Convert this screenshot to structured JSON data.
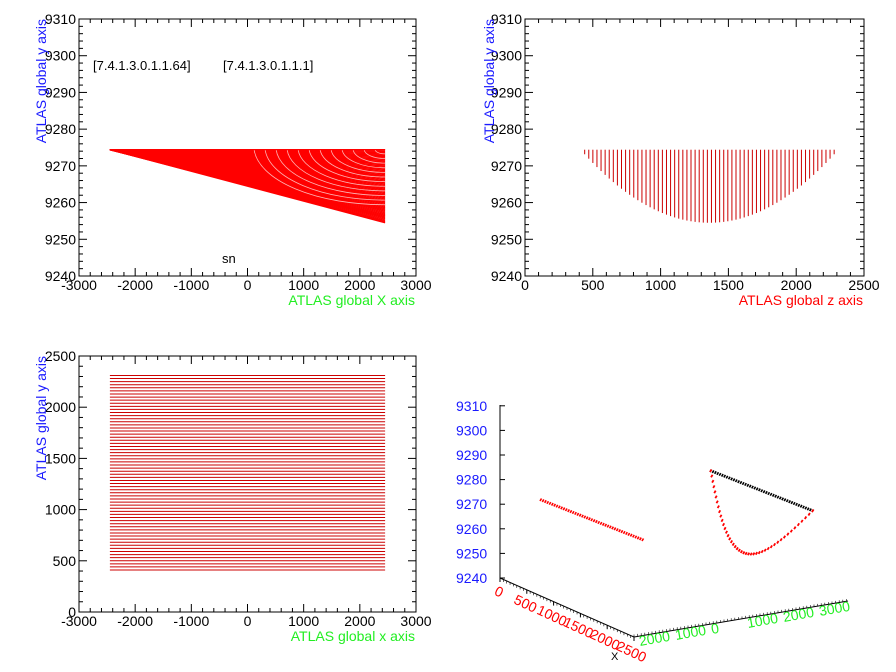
{
  "colors": {
    "blue": "#1a1aff",
    "green": "#22ee22",
    "red": "#ff0000",
    "darkred": "#cc0000",
    "black": "#000000"
  },
  "chart_data": [
    {
      "type": "line",
      "title": "",
      "xlabel": "ATLAS global X axis",
      "ylabel": "ATLAS global y axis",
      "xlabel_color": "green",
      "ylabel_color": "blue",
      "xlim": [
        -3000,
        3000
      ],
      "ylim": [
        9240,
        9310
      ],
      "xticks": [
        -3000,
        -2000,
        -1000,
        0,
        1000,
        2000,
        3000
      ],
      "yticks": [
        9240,
        9250,
        9260,
        9270,
        9280,
        9290,
        9300,
        9310
      ],
      "annotations": [
        "[7.4.1.3.0.1.1.64]",
        "[7.4.1.3.0.1.1.1]",
        "sn"
      ],
      "fan_origin": [
        -2450,
        9274.4
      ],
      "fan_x_end": 2450,
      "fan_y_end_range": [
        9254.5,
        9274.4
      ]
    },
    {
      "type": "line",
      "title": "",
      "xlabel": "ATLAS global z axis",
      "ylabel": "ATLAS global y axis",
      "xlabel_color": "red",
      "ylabel_color": "blue",
      "xlim": [
        0,
        2500
      ],
      "ylim": [
        9240,
        9310
      ],
      "xticks": [
        0,
        500,
        1000,
        1500,
        2000,
        2500
      ],
      "yticks": [
        9240,
        9250,
        9260,
        9270,
        9280,
        9290,
        9300,
        9310
      ],
      "z_range": [
        410,
        2310
      ],
      "y_top": 9274.4,
      "y_min": 9254.5,
      "z_at_min": 1360,
      "n_lines": 64
    },
    {
      "type": "line",
      "title": "",
      "xlabel": "ATLAS global x axis",
      "ylabel": "ATLAS global y axis",
      "xlabel_color": "green",
      "ylabel_color": "blue",
      "xlim": [
        -3000,
        3000
      ],
      "ylim": [
        0,
        2500
      ],
      "xticks": [
        -3000,
        -2000,
        -1000,
        0,
        1000,
        2000,
        3000
      ],
      "yticks": [
        0,
        500,
        1000,
        1500,
        2000,
        2500
      ],
      "x_range": [
        -2450,
        2450
      ],
      "y_range": [
        410,
        2310
      ],
      "n_lines": 64
    },
    {
      "type": "scatter",
      "title": "",
      "projection": "3d",
      "vertical_axis_ticks": [
        "9240",
        "9250",
        "9260",
        "9270",
        "9280",
        "9290",
        "9300",
        "9310"
      ],
      "z_axis_ticks": [
        "0",
        "500",
        "1000",
        "1500",
        "2000",
        "2500"
      ],
      "x_axis_ticks": [
        "2000",
        "1000",
        "0",
        "1000",
        "2000",
        "3000"
      ],
      "corner_label": "X"
    }
  ]
}
